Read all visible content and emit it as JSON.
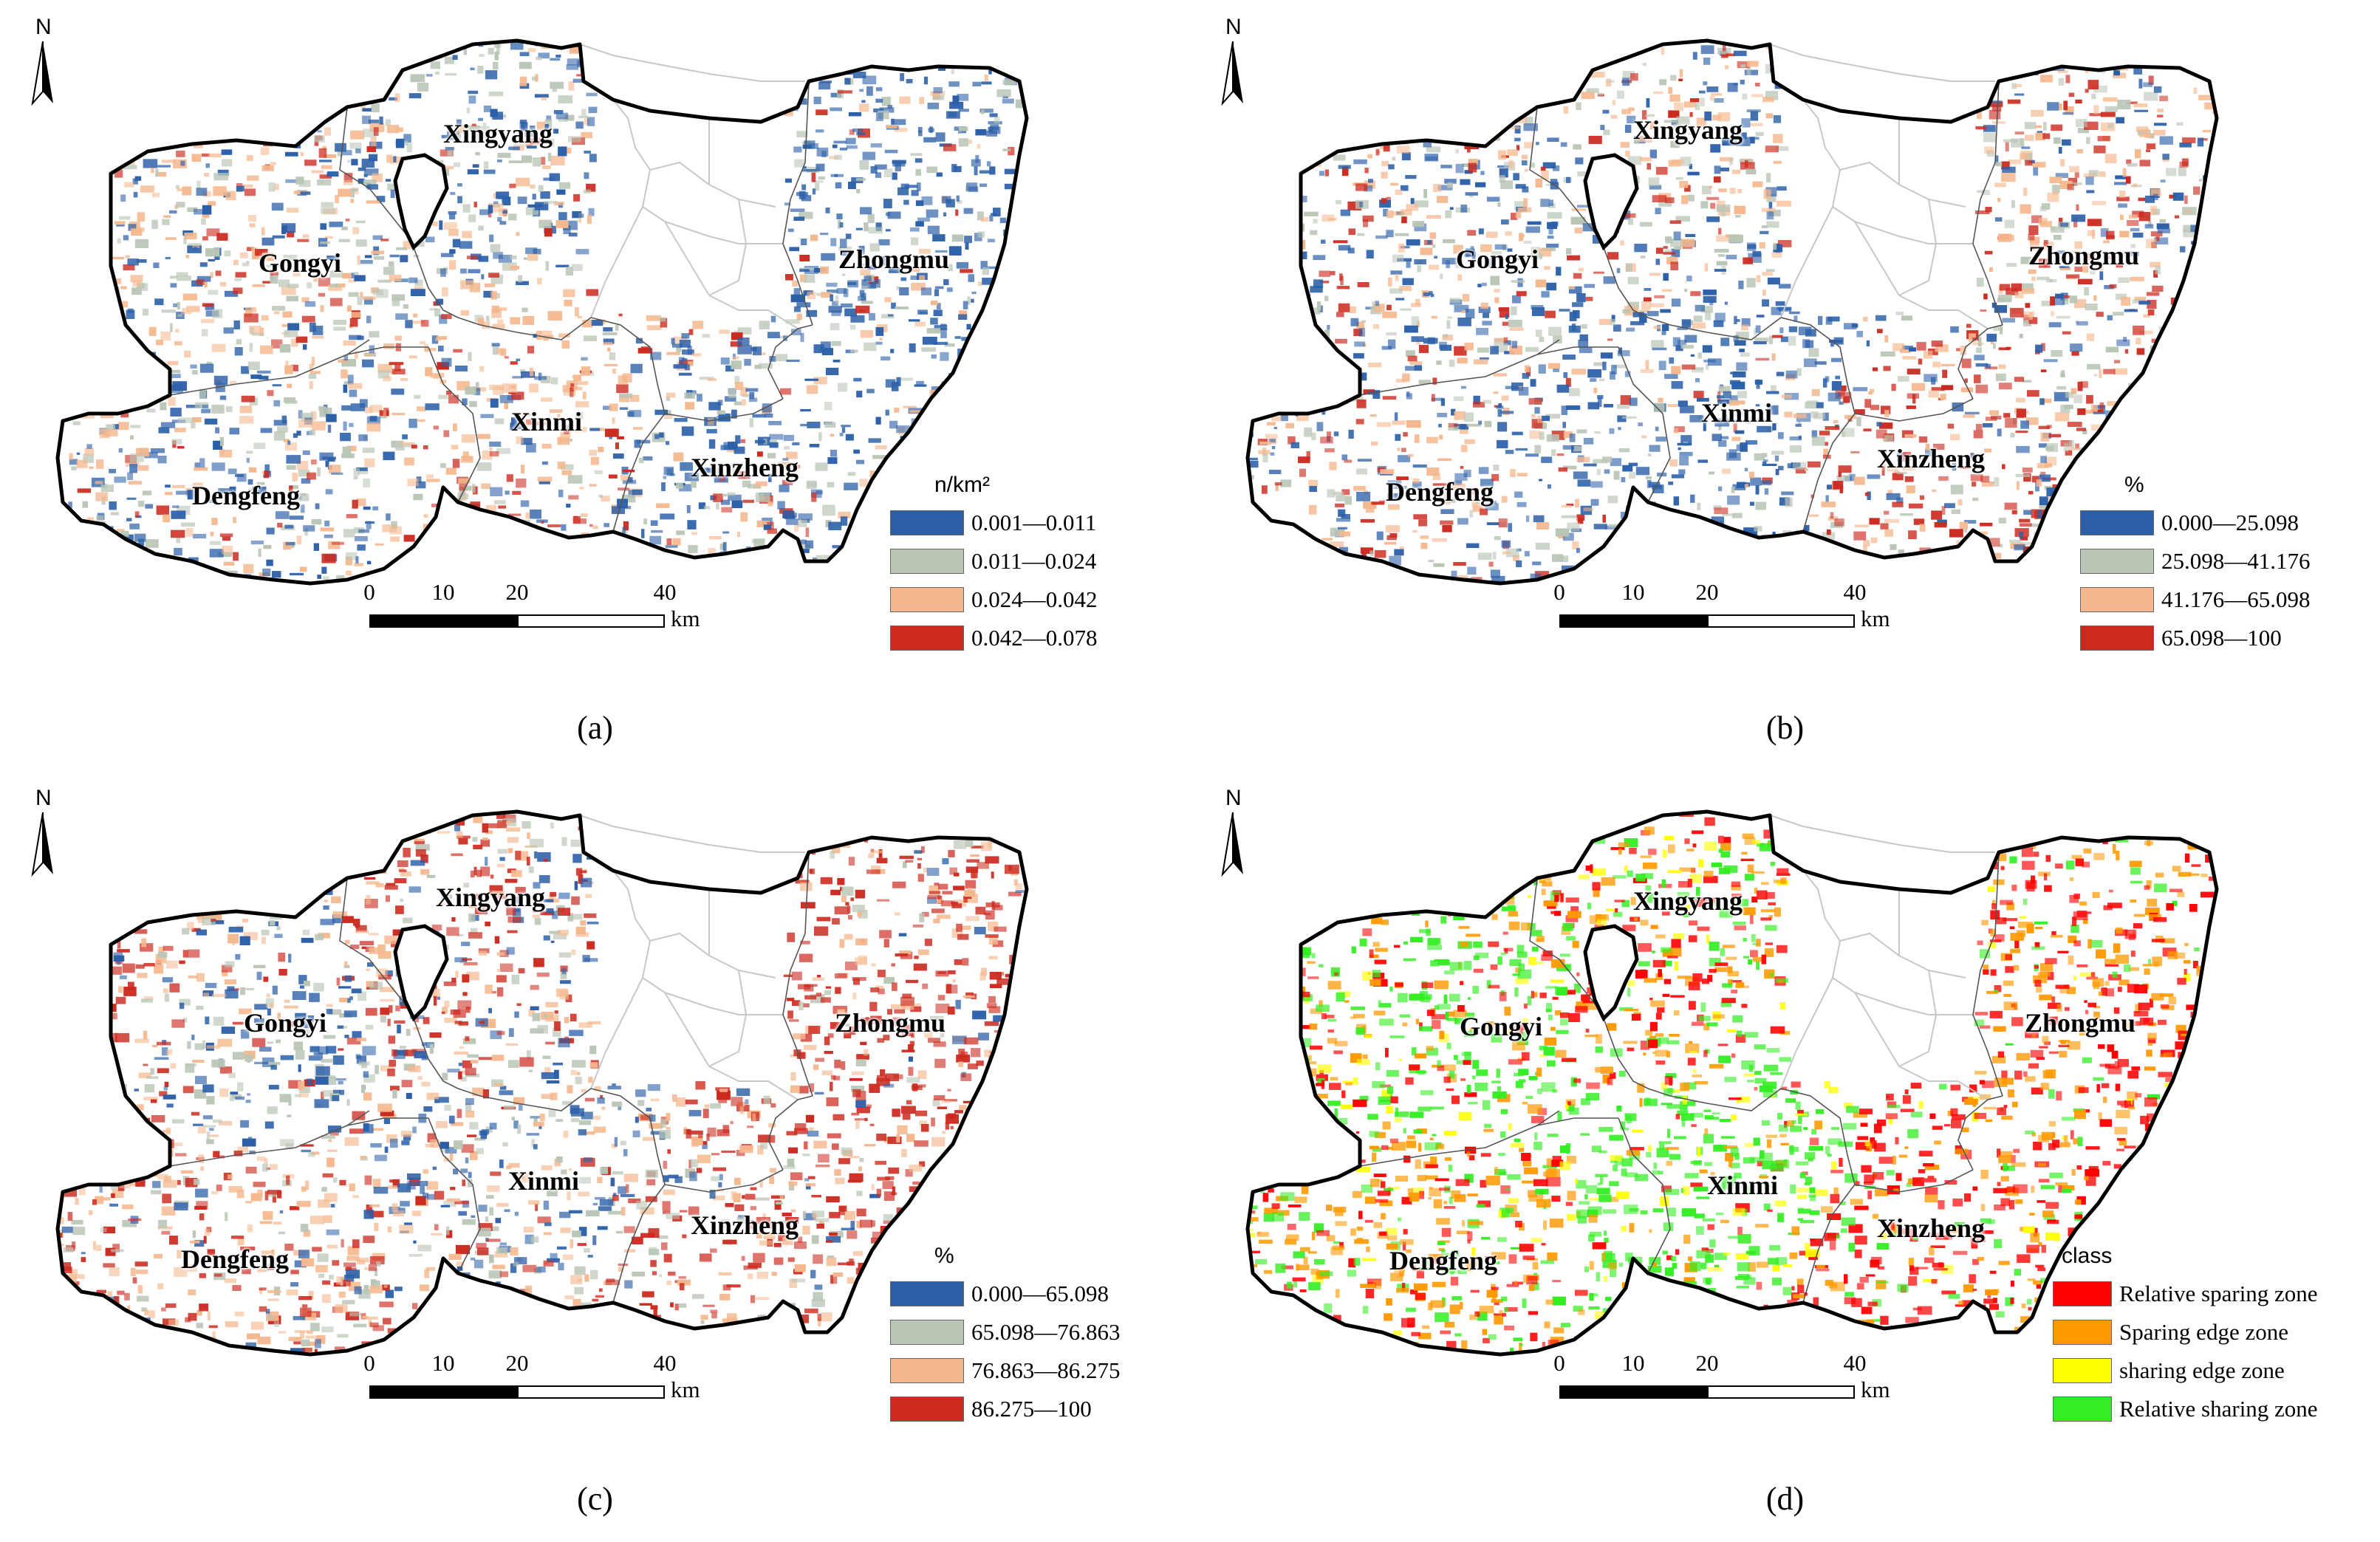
{
  "north_label": "N",
  "county_names": [
    "Xingyang",
    "Gongyi",
    "Zhongmu",
    "Xinmi",
    "Xinzheng",
    "Dengfeng"
  ],
  "scale": {
    "ticks": [
      "0",
      "10",
      "20",
      "40"
    ],
    "unit": "km"
  },
  "panels": [
    {
      "caption": "(a)",
      "legend_title": "n/km²",
      "classes": [
        {
          "label": "0.001—0.011",
          "color": "#2b5fa8"
        },
        {
          "label": "0.011—0.024",
          "color": "#b9c5b5"
        },
        {
          "label": "0.024—0.042",
          "color": "#f5b88e"
        },
        {
          "label": "0.042—0.078",
          "color": "#cc2a1f"
        }
      ]
    },
    {
      "caption": "(b)",
      "legend_title": "%",
      "classes": [
        {
          "label": "0.000—25.098",
          "color": "#2b5fa8"
        },
        {
          "label": "25.098—41.176",
          "color": "#b9c5b5"
        },
        {
          "label": "41.176—65.098",
          "color": "#f5b88e"
        },
        {
          "label": "65.098—100",
          "color": "#cc2a1f"
        }
      ]
    },
    {
      "caption": "(c)",
      "legend_title": "%",
      "classes": [
        {
          "label": "0.000—65.098",
          "color": "#2b5fa8"
        },
        {
          "label": "65.098—76.863",
          "color": "#b9c5b5"
        },
        {
          "label": "76.863—86.275",
          "color": "#f5b88e"
        },
        {
          "label": "86.275—100",
          "color": "#cc2a1f"
        }
      ]
    },
    {
      "caption": "(d)",
      "legend_title": "class",
      "classes": [
        {
          "label": "Relative sparing zone",
          "color": "#ff0000"
        },
        {
          "label": "Sparing edge zone",
          "color": "#ff9900"
        },
        {
          "label": "sharing edge zone",
          "color": "#ffff00"
        },
        {
          "label": "Relative sharing zone",
          "color": "#33ee22"
        }
      ]
    }
  ]
}
